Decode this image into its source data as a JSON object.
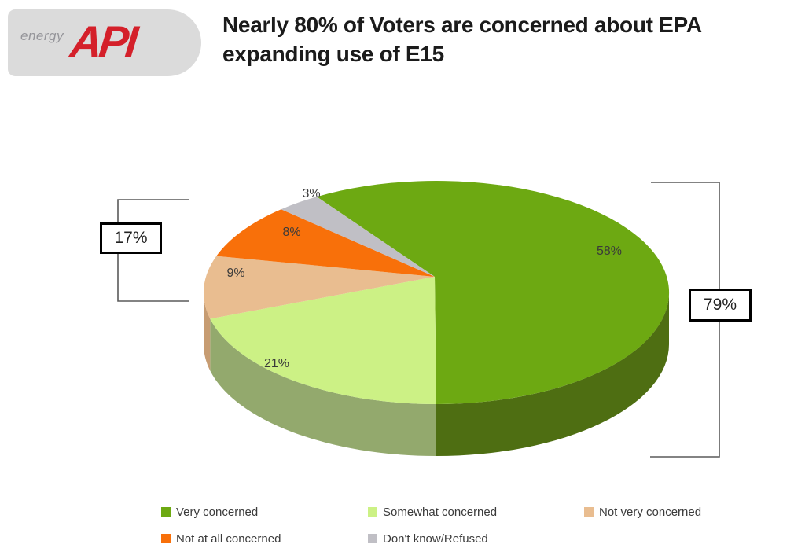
{
  "header": {
    "logo": {
      "energy_text": "energy",
      "api_text": "API"
    },
    "title_line1": "Nearly 80% of Voters are concerned about EPA",
    "title_line2": "expanding use of E15"
  },
  "chart_data": {
    "type": "pie",
    "style": "3d",
    "title": "Nearly 80% of Voters are concerned about EPA expanding use of E15",
    "value_suffix": "%",
    "series": [
      {
        "label": "Very concerned",
        "value": 58,
        "color": "#6DA912",
        "side_color": "#4E6E12"
      },
      {
        "label": "Somewhat concerned",
        "value": 21,
        "color": "#CCF185",
        "side_color": "#93A96D"
      },
      {
        "label": "Not very concerned",
        "value": 9,
        "color": "#E9BD90",
        "side_color": "#C79C72"
      },
      {
        "label": "Not at all concerned",
        "value": 8,
        "color": "#F8700A",
        "side_color": "#C05505"
      },
      {
        "label": "Don't know/Refused",
        "value": 3,
        "color": "#C0BFC5",
        "side_color": "#97969C"
      }
    ],
    "annotations": [
      {
        "text": "79%",
        "side": "right",
        "groups": [
          "Very concerned",
          "Somewhat concerned"
        ]
      },
      {
        "text": "17%",
        "side": "left",
        "groups": [
          "Not very concerned",
          "Not at all concerned"
        ]
      }
    ],
    "legend_position": "bottom",
    "start_angle_cw_deg": 329.09,
    "grid": false
  }
}
